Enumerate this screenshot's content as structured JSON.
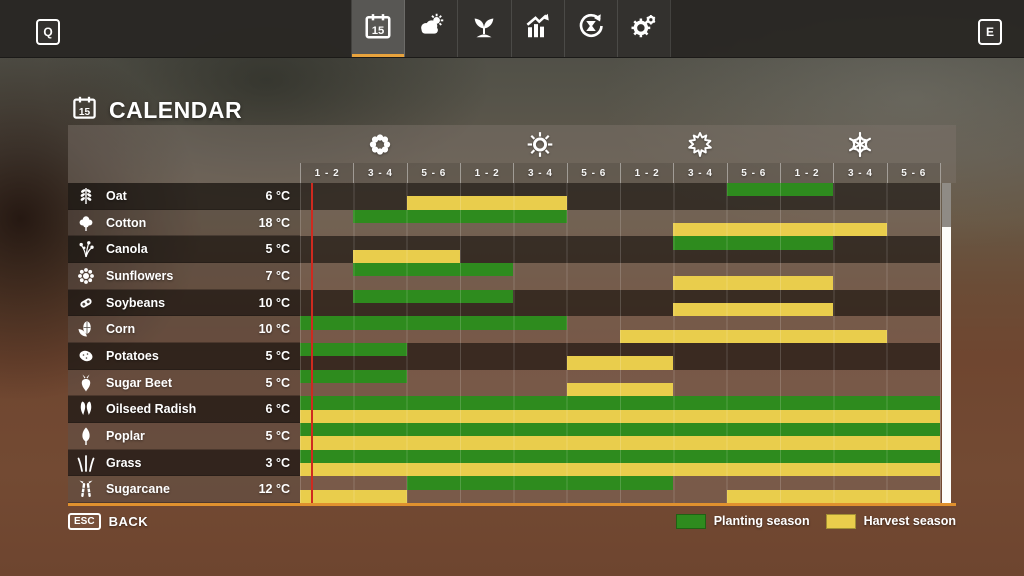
{
  "topbar": {
    "left_key": "Q",
    "right_key": "E",
    "tabs": [
      {
        "id": "calendar",
        "icon": "calendar-icon",
        "active": true
      },
      {
        "id": "weather",
        "icon": "weather-icon",
        "active": false
      },
      {
        "id": "crops",
        "icon": "seedling-icon",
        "active": false
      },
      {
        "id": "statistics",
        "icon": "statistics-icon",
        "active": false
      },
      {
        "id": "crop-rotation",
        "icon": "crop-rotation-icon",
        "active": false
      },
      {
        "id": "settings",
        "icon": "settings-icon",
        "active": false
      }
    ]
  },
  "header": {
    "title": "CALENDAR"
  },
  "calendar": {
    "columns": 12,
    "month_labels": [
      "1 - 2",
      "3 - 4",
      "5 - 6",
      "1 - 2",
      "3 - 4",
      "5 - 6",
      "1 - 2",
      "3 - 4",
      "5 - 6",
      "1 - 2",
      "3 - 4",
      "5 - 6"
    ],
    "seasons": [
      {
        "name": "spring",
        "icon": "flower-icon"
      },
      {
        "name": "summer",
        "icon": "sun-icon"
      },
      {
        "name": "autumn",
        "icon": "autumn-leaf-icon"
      },
      {
        "name": "winter",
        "icon": "snowflake-icon"
      }
    ],
    "current_date_column": 1,
    "rows": [
      {
        "crop": "Oat",
        "temperature": "6 °C",
        "icon": "oat-icon",
        "planting": [
          [
            9,
            10
          ]
        ],
        "harvest": [
          [
            3,
            5
          ]
        ]
      },
      {
        "crop": "Cotton",
        "temperature": "18 °C",
        "icon": "cotton-icon",
        "planting": [
          [
            2,
            5
          ]
        ],
        "harvest": [
          [
            8,
            11
          ]
        ]
      },
      {
        "crop": "Canola",
        "temperature": "5 °C",
        "icon": "canola-icon",
        "planting": [
          [
            8,
            10
          ]
        ],
        "harvest": [
          [
            2,
            3
          ]
        ]
      },
      {
        "crop": "Sunflowers",
        "temperature": "7 °C",
        "icon": "sunflower-icon",
        "planting": [
          [
            2,
            4
          ]
        ],
        "harvest": [
          [
            8,
            10
          ]
        ]
      },
      {
        "crop": "Soybeans",
        "temperature": "10 °C",
        "icon": "soybean-icon",
        "planting": [
          [
            2,
            4
          ]
        ],
        "harvest": [
          [
            8,
            10
          ]
        ]
      },
      {
        "crop": "Corn",
        "temperature": "10 °C",
        "icon": "corn-icon",
        "planting": [
          [
            1,
            5
          ]
        ],
        "harvest": [
          [
            7,
            11
          ]
        ]
      },
      {
        "crop": "Potatoes",
        "temperature": "5 °C",
        "icon": "potato-icon",
        "planting": [
          [
            1,
            2
          ]
        ],
        "harvest": [
          [
            6,
            7
          ]
        ]
      },
      {
        "crop": "Sugar Beet",
        "temperature": "5 °C",
        "icon": "sugar-beet-icon",
        "planting": [
          [
            1,
            2
          ]
        ],
        "harvest": [
          [
            6,
            7
          ]
        ]
      },
      {
        "crop": "Oilseed Radish",
        "temperature": "6 °C",
        "icon": "oilseed-radish-icon",
        "planting": [
          [
            1,
            12
          ]
        ],
        "harvest": [
          [
            1,
            12
          ]
        ]
      },
      {
        "crop": "Poplar",
        "temperature": "5 °C",
        "icon": "poplar-icon",
        "planting": [
          [
            1,
            12
          ]
        ],
        "harvest": [
          [
            1,
            12
          ]
        ]
      },
      {
        "crop": "Grass",
        "temperature": "3 °C",
        "icon": "grass-icon",
        "planting": [
          [
            1,
            12
          ]
        ],
        "harvest": [
          [
            1,
            12
          ]
        ]
      },
      {
        "crop": "Sugarcane",
        "temperature": "12 °C",
        "icon": "sugarcane-icon",
        "planting": [
          [
            3,
            7
          ]
        ],
        "harvest": [
          [
            1,
            2
          ],
          [
            9,
            12
          ]
        ]
      }
    ]
  },
  "footer": {
    "back_key": "ESC",
    "back_label": "BACK",
    "legend": [
      {
        "label": "Planting season",
        "color": "#2e8b1e"
      },
      {
        "label": "Harvest season",
        "color": "#e9cd4c"
      }
    ]
  },
  "colors": {
    "planting_green": "#2e8b1e",
    "harvest_yellow": "#e9cd4c",
    "accent_orange": "#e8a33d",
    "current_line_red": "#cf2a1f"
  }
}
